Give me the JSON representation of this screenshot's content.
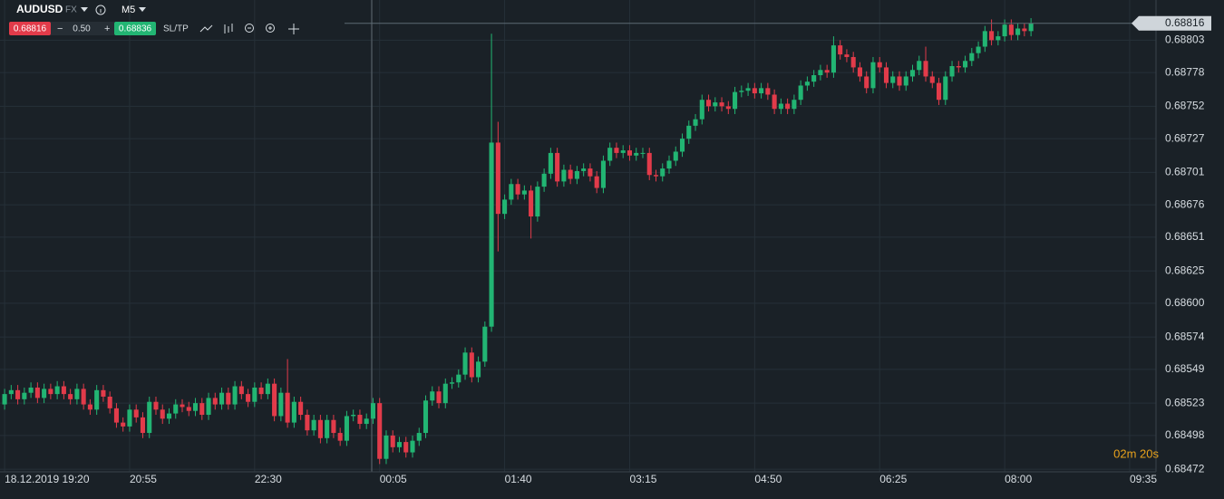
{
  "toolbar": {
    "symbol": "AUDUSD",
    "market": "FX",
    "timeframe": "M5",
    "bid": "0.68816",
    "minus": "−",
    "lot": "0.50",
    "plus": "+",
    "ask": "0.68836",
    "sltp": "SL/TP"
  },
  "countdown": "02m 20s",
  "chart_data": {
    "type": "candlestick",
    "up_color": "#22b573",
    "down_color": "#e23b4a",
    "last_price": 0.68816,
    "last_price_label": "0.68816",
    "xlim": [
      -0.7,
      175
    ],
    "ylim": [
      0.6847,
      0.68834
    ],
    "grid": true,
    "xticks": [
      {
        "value": 0,
        "label": "18.12.2019 19:20"
      },
      {
        "value": 19,
        "label": "20:55"
      },
      {
        "value": 38,
        "label": "22:30"
      },
      {
        "value": 57,
        "label": "00:05"
      },
      {
        "value": 76,
        "label": "01:40"
      },
      {
        "value": 95,
        "label": "03:15"
      },
      {
        "value": 114,
        "label": "04:50"
      },
      {
        "value": 133,
        "label": "06:25"
      },
      {
        "value": 152,
        "label": "08:00"
      },
      {
        "value": 171,
        "label": "09:35"
      }
    ],
    "yticks": [
      0.68472,
      0.68498,
      0.68523,
      0.68549,
      0.68574,
      {
        "value": 0.686,
        "label": "0.68600"
      },
      0.68625,
      0.68651,
      0.68676,
      0.68701,
      0.68727,
      0.68752,
      0.68778,
      0.68803
    ],
    "open": [
      0.68522,
      0.6853,
      0.68533,
      0.68526,
      0.68531,
      0.68535,
      0.68527,
      0.68534,
      0.6853,
      0.68536,
      0.6853,
      0.68526,
      0.68534,
      0.68522,
      0.68518,
      0.68533,
      0.68528,
      0.68519,
      0.68508,
      0.68505,
      0.68518,
      0.68512,
      0.685,
      0.68524,
      0.68518,
      0.68511,
      0.68515,
      0.68522,
      0.6852,
      0.68517,
      0.68523,
      0.68514,
      0.68527,
      0.68522,
      0.68531,
      0.68522,
      0.68536,
      0.6853,
      0.68524,
      0.68535,
      0.6853,
      0.68538,
      0.68513,
      0.68531,
      0.68508,
      0.68524,
      0.68514,
      0.68502,
      0.6851,
      0.68496,
      0.6851,
      0.685,
      0.68494,
      0.68513,
      0.68514,
      0.68507,
      0.68511,
      0.68523,
      0.6848,
      0.68498,
      0.68489,
      0.68493,
      0.68485,
      0.68494,
      0.685,
      0.68525,
      0.68532,
      0.68523,
      0.68538,
      0.68539,
      0.68545,
      0.68562,
      0.68543,
      0.68555,
      0.68582,
      0.68724,
      0.68669,
      0.6868,
      0.68692,
      0.68684,
      0.68687,
      0.68667,
      0.6869,
      0.687,
      0.68716,
      0.68694,
      0.68703,
      0.68696,
      0.68702,
      0.68704,
      0.68698,
      0.68689,
      0.6871,
      0.6872,
      0.68716,
      0.68718,
      0.68714,
      0.68716,
      0.68716,
      0.68699,
      0.68698,
      0.68704,
      0.6871,
      0.68717,
      0.68727,
      0.68737,
      0.68742,
      0.68757,
      0.68752,
      0.68755,
      0.68752,
      0.6875,
      0.68763,
      0.68764,
      0.68766,
      0.68762,
      0.68766,
      0.68761,
      0.6875,
      0.68754,
      0.6875,
      0.68757,
      0.68768,
      0.68771,
      0.68776,
      0.6878,
      0.68778,
      0.68799,
      0.68792,
      0.6879,
      0.68782,
      0.68775,
      0.68766,
      0.68786,
      0.68782,
      0.6877,
      0.68775,
      0.68768,
      0.68775,
      0.6878,
      0.68787,
      0.68775,
      0.6877,
      0.68757,
      0.68775,
      0.68783,
      0.68782,
      0.68787,
      0.68793,
      0.68798,
      0.6881,
      0.68803,
      0.68806,
      0.68815,
      0.68807,
      0.68812,
      0.6881
    ],
    "high": [
      0.68534,
      0.68537,
      0.68537,
      0.68535,
      0.68539,
      0.68539,
      0.68538,
      0.68538,
      0.6854,
      0.6854,
      0.68534,
      0.68538,
      0.68538,
      0.68526,
      0.68537,
      0.68537,
      0.68532,
      0.68523,
      0.68512,
      0.68522,
      0.68522,
      0.68516,
      0.68528,
      0.68528,
      0.68522,
      0.68519,
      0.68526,
      0.68526,
      0.68524,
      0.68527,
      0.68527,
      0.68531,
      0.68531,
      0.68535,
      0.68535,
      0.6854,
      0.6854,
      0.68534,
      0.68539,
      0.68539,
      0.68542,
      0.68542,
      0.68535,
      0.68557,
      0.68528,
      0.68528,
      0.68518,
      0.68514,
      0.68514,
      0.68514,
      0.68514,
      0.68504,
      0.68517,
      0.68518,
      0.68518,
      0.68515,
      0.68527,
      0.68527,
      0.68502,
      0.68502,
      0.68497,
      0.68497,
      0.68498,
      0.68504,
      0.68529,
      0.68536,
      0.68536,
      0.68542,
      0.68543,
      0.68549,
      0.68566,
      0.68566,
      0.68559,
      0.68586,
      0.68808,
      0.6874,
      0.68684,
      0.68696,
      0.68696,
      0.68691,
      0.68691,
      0.68694,
      0.68704,
      0.6872,
      0.6872,
      0.68707,
      0.68707,
      0.68706,
      0.68708,
      0.68708,
      0.68702,
      0.68714,
      0.68724,
      0.68724,
      0.68722,
      0.68722,
      0.6872,
      0.6872,
      0.6872,
      0.68703,
      0.68708,
      0.68714,
      0.68721,
      0.68731,
      0.68741,
      0.68746,
      0.68761,
      0.68761,
      0.68759,
      0.68759,
      0.68756,
      0.68767,
      0.68768,
      0.6877,
      0.6877,
      0.6877,
      0.6877,
      0.68765,
      0.68758,
      0.68758,
      0.68761,
      0.68772,
      0.68775,
      0.6878,
      0.68784,
      0.68784,
      0.68806,
      0.68803,
      0.68796,
      0.68794,
      0.68786,
      0.68779,
      0.6879,
      0.6879,
      0.68786,
      0.68779,
      0.68779,
      0.68779,
      0.68784,
      0.68791,
      0.68798,
      0.68779,
      0.68774,
      0.68779,
      0.68787,
      0.68787,
      0.68791,
      0.68797,
      0.68802,
      0.68814,
      0.68819,
      0.6881,
      0.68819,
      0.68819,
      0.68816,
      0.68816,
      0.6882
    ],
    "low": [
      0.68518,
      0.68526,
      0.68522,
      0.68522,
      0.68527,
      0.68523,
      0.68523,
      0.68526,
      0.68526,
      0.68526,
      0.68522,
      0.68522,
      0.68518,
      0.68514,
      0.68514,
      0.68524,
      0.68515,
      0.68504,
      0.68501,
      0.68501,
      0.68508,
      0.68496,
      0.68496,
      0.68514,
      0.68507,
      0.68507,
      0.68511,
      0.68516,
      0.68513,
      0.68513,
      0.6851,
      0.6851,
      0.68518,
      0.68518,
      0.68518,
      0.68518,
      0.68526,
      0.6852,
      0.6852,
      0.68526,
      0.68526,
      0.68509,
      0.68509,
      0.68504,
      0.68504,
      0.6851,
      0.68498,
      0.68498,
      0.68492,
      0.68492,
      0.68496,
      0.6849,
      0.6849,
      0.68509,
      0.68503,
      0.68503,
      0.68507,
      0.68476,
      0.68476,
      0.68485,
      0.68485,
      0.68481,
      0.68481,
      0.6849,
      0.68496,
      0.68521,
      0.68519,
      0.68519,
      0.68534,
      0.68535,
      0.68541,
      0.68539,
      0.68539,
      0.68551,
      0.68578,
      0.6864,
      0.68665,
      0.68676,
      0.6868,
      0.6868,
      0.6865,
      0.68663,
      0.68686,
      0.68696,
      0.6869,
      0.6869,
      0.68692,
      0.68692,
      0.68698,
      0.68694,
      0.68685,
      0.68685,
      0.68706,
      0.68712,
      0.68712,
      0.6871,
      0.6871,
      0.68712,
      0.68695,
      0.68694,
      0.68694,
      0.687,
      0.68706,
      0.68713,
      0.68723,
      0.68733,
      0.68738,
      0.68748,
      0.68748,
      0.68748,
      0.68746,
      0.68746,
      0.68759,
      0.6876,
      0.68758,
      0.68758,
      0.68757,
      0.68746,
      0.68746,
      0.68746,
      0.68746,
      0.68753,
      0.68764,
      0.68767,
      0.68772,
      0.68774,
      0.68774,
      0.68788,
      0.68786,
      0.68778,
      0.68771,
      0.68762,
      0.68762,
      0.68778,
      0.68766,
      0.68766,
      0.68764,
      0.68764,
      0.68771,
      0.68776,
      0.68771,
      0.68766,
      0.68753,
      0.68753,
      0.68771,
      0.68778,
      0.68778,
      0.68783,
      0.68789,
      0.68794,
      0.68799,
      0.68799,
      0.68802,
      0.68803,
      0.68803,
      0.68806,
      0.68806
    ],
    "close": [
      0.6853,
      0.68533,
      0.68526,
      0.68531,
      0.68535,
      0.68527,
      0.68534,
      0.6853,
      0.68536,
      0.6853,
      0.68526,
      0.68534,
      0.68522,
      0.68518,
      0.68533,
      0.68528,
      0.68519,
      0.68508,
      0.68505,
      0.68518,
      0.68512,
      0.685,
      0.68524,
      0.68518,
      0.68511,
      0.68515,
      0.68522,
      0.6852,
      0.68517,
      0.68523,
      0.68514,
      0.68527,
      0.68522,
      0.68531,
      0.68522,
      0.68536,
      0.6853,
      0.68524,
      0.68535,
      0.6853,
      0.68538,
      0.68513,
      0.68531,
      0.68508,
      0.68524,
      0.68514,
      0.68502,
      0.6851,
      0.68496,
      0.6851,
      0.685,
      0.68494,
      0.68513,
      0.68514,
      0.68507,
      0.68511,
      0.68523,
      0.6848,
      0.68498,
      0.68489,
      0.68493,
      0.68485,
      0.68494,
      0.685,
      0.68525,
      0.68532,
      0.68523,
      0.68538,
      0.68539,
      0.68545,
      0.68562,
      0.68543,
      0.68555,
      0.68582,
      0.68724,
      0.68669,
      0.6868,
      0.68692,
      0.68684,
      0.68687,
      0.68667,
      0.6869,
      0.687,
      0.68716,
      0.68694,
      0.68703,
      0.68696,
      0.68702,
      0.68704,
      0.68698,
      0.68689,
      0.6871,
      0.6872,
      0.68716,
      0.68718,
      0.68714,
      0.68716,
      0.68716,
      0.68699,
      0.68698,
      0.68704,
      0.6871,
      0.68717,
      0.68727,
      0.68737,
      0.68742,
      0.68757,
      0.68752,
      0.68755,
      0.68752,
      0.6875,
      0.68763,
      0.68764,
      0.68766,
      0.68762,
      0.68766,
      0.68761,
      0.6875,
      0.68754,
      0.6875,
      0.68757,
      0.68768,
      0.68771,
      0.68776,
      0.6878,
      0.68778,
      0.68799,
      0.68792,
      0.6879,
      0.68782,
      0.68775,
      0.68766,
      0.68786,
      0.68782,
      0.6877,
      0.68775,
      0.68768,
      0.68775,
      0.6878,
      0.68787,
      0.68775,
      0.6877,
      0.68757,
      0.68775,
      0.68783,
      0.68782,
      0.68787,
      0.68793,
      0.68798,
      0.6881,
      0.68803,
      0.68806,
      0.68815,
      0.68807,
      0.68812,
      0.6881,
      0.68816
    ]
  }
}
